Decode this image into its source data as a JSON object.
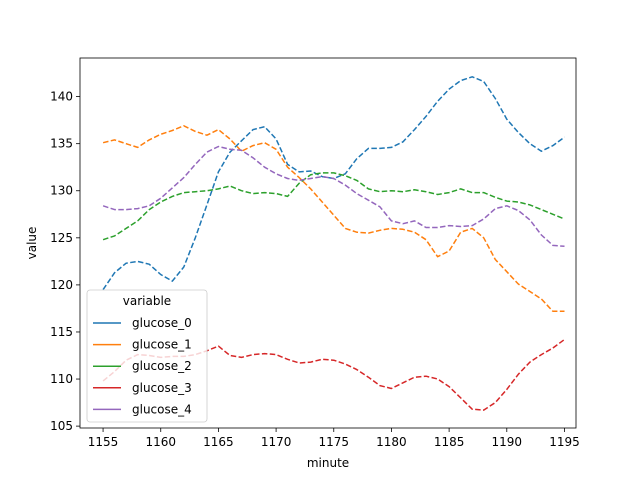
{
  "chart_data": {
    "type": "line",
    "xlabel": "minute",
    "ylabel": "value",
    "xlim": [
      1153,
      1196
    ],
    "ylim": [
      104.8,
      144.1
    ],
    "xticks": [
      1155,
      1160,
      1165,
      1170,
      1175,
      1180,
      1185,
      1190,
      1195
    ],
    "yticks": [
      105,
      110,
      115,
      120,
      125,
      130,
      135,
      140
    ],
    "legend": {
      "title": "variable",
      "placement": "lower-left"
    },
    "x": [
      1155,
      1156,
      1157,
      1158,
      1159,
      1160,
      1161,
      1162,
      1163,
      1164,
      1165,
      1166,
      1167,
      1168,
      1169,
      1170,
      1171,
      1172,
      1173,
      1174,
      1175,
      1176,
      1177,
      1178,
      1179,
      1180,
      1181,
      1182,
      1183,
      1184,
      1185,
      1186,
      1187,
      1188,
      1189,
      1190,
      1191,
      1192,
      1193,
      1194,
      1195
    ],
    "series": [
      {
        "name": "glucose_0",
        "color": "#1f77b4",
        "values": [
          119.5,
          121.3,
          122.3,
          122.5,
          122.2,
          121.1,
          120.4,
          121.9,
          125.0,
          128.5,
          132.0,
          134.1,
          135.3,
          136.5,
          136.8,
          135.5,
          132.8,
          132.0,
          132.1,
          131.5,
          131.3,
          131.8,
          133.4,
          134.5,
          134.5,
          134.6,
          135.2,
          136.5,
          137.9,
          139.5,
          140.8,
          141.7,
          142.1,
          141.6,
          139.8,
          137.6,
          136.2,
          135.0,
          134.2,
          134.8,
          135.7
        ]
      },
      {
        "name": "glucose_1",
        "color": "#ff7f0e",
        "values": [
          135.1,
          135.4,
          135.0,
          134.6,
          135.4,
          136.0,
          136.4,
          136.9,
          136.3,
          135.9,
          136.5,
          135.5,
          134.2,
          134.8,
          135.1,
          134.4,
          132.5,
          131.4,
          130.2,
          128.8,
          127.4,
          126.0,
          125.6,
          125.5,
          125.8,
          126.0,
          125.9,
          125.6,
          124.8,
          123.0,
          123.6,
          125.6,
          126.0,
          125.0,
          122.7,
          121.4,
          120.1,
          119.3,
          118.5,
          117.2,
          117.2
        ]
      },
      {
        "name": "glucose_2",
        "color": "#2ca02c",
        "values": [
          124.8,
          125.2,
          126.0,
          126.8,
          128.0,
          128.8,
          129.4,
          129.8,
          129.9,
          130.0,
          130.2,
          130.5,
          130.0,
          129.7,
          129.8,
          129.7,
          129.4,
          130.8,
          131.7,
          131.9,
          131.9,
          131.6,
          131.1,
          130.2,
          129.9,
          130.0,
          129.9,
          130.1,
          129.9,
          129.6,
          129.8,
          130.2,
          129.8,
          129.8,
          129.3,
          128.9,
          128.8,
          128.5,
          128.0,
          127.5,
          127.0
        ]
      },
      {
        "name": "glucose_3",
        "color": "#d62728",
        "values": [
          109.8,
          110.8,
          112.0,
          112.6,
          112.5,
          112.3,
          112.4,
          112.4,
          112.6,
          113.0,
          113.5,
          112.5,
          112.3,
          112.6,
          112.7,
          112.6,
          112.1,
          111.7,
          111.8,
          112.1,
          112.0,
          111.6,
          111.0,
          110.2,
          109.3,
          109.0,
          109.6,
          110.2,
          110.3,
          110.0,
          109.2,
          108.0,
          106.8,
          106.7,
          107.5,
          108.9,
          110.5,
          111.8,
          112.6,
          113.3,
          114.2
        ]
      },
      {
        "name": "glucose_4",
        "color": "#9467bd",
        "values": [
          128.4,
          128.0,
          128.0,
          128.1,
          128.4,
          129.2,
          130.3,
          131.4,
          132.8,
          134.1,
          134.7,
          134.4,
          134.3,
          133.5,
          132.5,
          131.8,
          131.3,
          131.1,
          131.3,
          131.5,
          131.3,
          130.6,
          129.7,
          129.0,
          128.3,
          126.8,
          126.5,
          126.8,
          126.1,
          126.1,
          126.3,
          126.2,
          126.3,
          127.0,
          128.1,
          128.4,
          127.9,
          126.9,
          125.3,
          124.2,
          124.1
        ]
      }
    ]
  }
}
